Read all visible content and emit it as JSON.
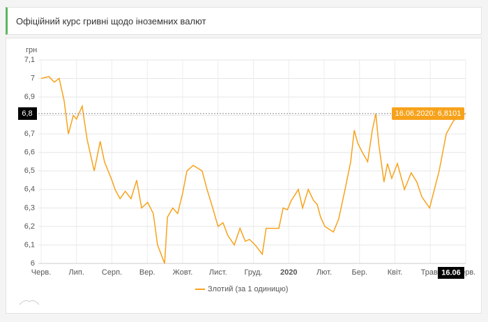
{
  "header": {
    "title": "Офіційний курс гривні щодо іноземних валют"
  },
  "chart_data": {
    "type": "line",
    "ylabel": "грн",
    "x": [
      0,
      0.22,
      0.37,
      0.51,
      0.65,
      0.77,
      0.91,
      1.0,
      1.16,
      1.3,
      1.5,
      1.67,
      1.79,
      2.0,
      2.09,
      2.23,
      2.38,
      2.54,
      2.7,
      2.84,
      3.01,
      3.17,
      3.29,
      3.49,
      3.57,
      3.72,
      3.86,
      4.0,
      4.12,
      4.3,
      4.55,
      4.69,
      4.85,
      5.0,
      5.14,
      5.28,
      5.46,
      5.62,
      5.77,
      5.89,
      6.05,
      6.25,
      6.36,
      6.72,
      6.84,
      6.96,
      7.07,
      7.27,
      7.39,
      7.55,
      7.7,
      7.8,
      7.9,
      8.02,
      8.26,
      8.41,
      8.59,
      8.75,
      8.85,
      8.95,
      9.08,
      9.23,
      9.36,
      9.46,
      9.54,
      9.69,
      9.79,
      9.91,
      10.07,
      10.27,
      10.46,
      10.62,
      10.76,
      10.98,
      11.25,
      11.45,
      11.65,
      11.84,
      12.0
    ],
    "series": [
      {
        "name": "Злотий (за 1 одиницю)",
        "color": "#f7a21b",
        "values": [
          7.0,
          7.01,
          6.98,
          7.0,
          6.88,
          6.7,
          6.8,
          6.78,
          6.85,
          6.67,
          6.5,
          6.66,
          6.55,
          6.45,
          6.4,
          6.35,
          6.39,
          6.35,
          6.45,
          6.3,
          6.33,
          6.27,
          6.1,
          6.0,
          6.25,
          6.3,
          6.27,
          6.38,
          6.5,
          6.53,
          6.5,
          6.4,
          6.3,
          6.2,
          6.22,
          6.15,
          6.1,
          6.19,
          6.12,
          6.13,
          6.1,
          6.05,
          6.19,
          6.19,
          6.3,
          6.29,
          6.34,
          6.4,
          6.3,
          6.4,
          6.34,
          6.32,
          6.25,
          6.2,
          6.17,
          6.24,
          6.4,
          6.55,
          6.72,
          6.65,
          6.6,
          6.55,
          6.72,
          6.81,
          6.65,
          6.44,
          6.54,
          6.46,
          6.54,
          6.4,
          6.49,
          6.44,
          6.36,
          6.3,
          6.5,
          6.7,
          6.77,
          6.8,
          6.8101
        ]
      }
    ],
    "xlim": [
      0,
      12
    ],
    "xticks": [
      {
        "value": 0,
        "label": "Черв."
      },
      {
        "value": 1,
        "label": "Лип."
      },
      {
        "value": 2,
        "label": "Серп."
      },
      {
        "value": 3,
        "label": "Вер."
      },
      {
        "value": 4,
        "label": "Жовт."
      },
      {
        "value": 5,
        "label": "Лист."
      },
      {
        "value": 6,
        "label": "Груд."
      },
      {
        "value": 7,
        "label": "2020"
      },
      {
        "value": 8,
        "label": "Лют."
      },
      {
        "value": 9,
        "label": "Бер."
      },
      {
        "value": 10,
        "label": "Квіт."
      },
      {
        "value": 11,
        "label": "Трав."
      },
      {
        "value": 12,
        "label": "Черв."
      }
    ],
    "ylim": [
      6,
      7.1
    ],
    "yticks": [
      6,
      {
        "value": 6.1,
        "label": "6,1"
      },
      {
        "value": 6.2,
        "label": "6,2"
      },
      {
        "value": 6.3,
        "label": "6,3"
      },
      {
        "value": 6.4,
        "label": "6,4"
      },
      {
        "value": 6.5,
        "label": "6,5"
      },
      {
        "value": 6.6,
        "label": "6,6"
      },
      {
        "value": 6.7,
        "label": "6,7"
      },
      {
        "value": 6.8,
        "label": "6,8"
      },
      {
        "value": 6.9,
        "label": "6,9"
      },
      7,
      {
        "value": 7.1,
        "label": "7,1"
      }
    ],
    "grid": true,
    "tooltip": {
      "text": "16.06.2020: 6,8101",
      "y_label": "6,8",
      "x_label": "16.06"
    }
  }
}
